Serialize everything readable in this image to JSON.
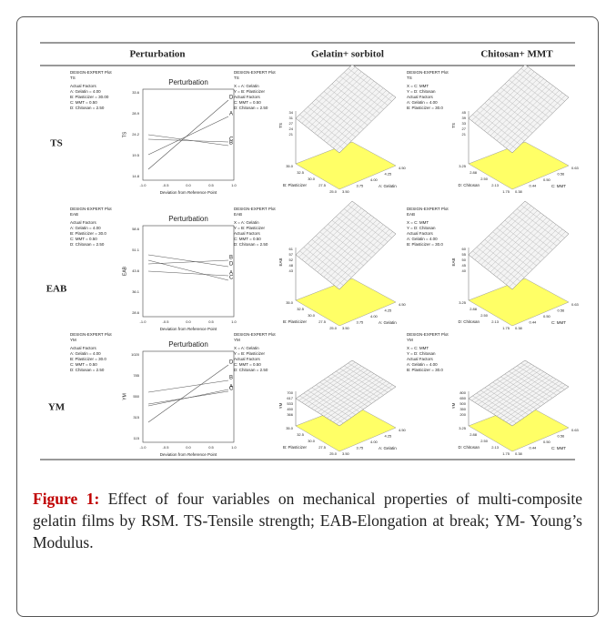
{
  "header": {
    "columns": [
      "Perturbation",
      "Gelatin+ sorbitol",
      "Chitosan+ MMT"
    ]
  },
  "rows": [
    {
      "label": "TS",
      "panels": [
        {
          "kind": "perturbation",
          "info": [
            "DESIGN-EXPERT Plot",
            "TS",
            "Actual Factors",
            "A: Gelatin = 4.00",
            "B: Plasticizer = 30.00",
            "C: MMT = 0.50",
            "D: Chitosan = 2.50"
          ],
          "title": "Perturbation",
          "ylabel": "TS",
          "yticks": [
            "33.6",
            "28.9",
            "24.2",
            "19.5",
            "14.8"
          ],
          "xticks": [
            "-1.0",
            "-0.5",
            "0.0",
            "0.5",
            "1.0"
          ],
          "xlabel": "Deviation from Reference Point",
          "lines": [
            "A",
            "B",
            "C",
            "D"
          ]
        },
        {
          "kind": "surface",
          "info": [
            "DESIGN-EXPERT Plot",
            "TS",
            "X = A: Gelatin",
            "Y = B: Plasticizer",
            "Actual Factors",
            "C: MMT = 0.50",
            "D: Chitosan = 2.50"
          ],
          "zlabel": "TS",
          "zticks": [
            "34",
            "31",
            "27",
            "24",
            "21"
          ],
          "yticks": [
            "35.0",
            "32.5",
            "30.0",
            "27.5",
            "25.0"
          ],
          "ylabel": "B: Plasticizer",
          "xticks": [
            "3.50",
            "3.75",
            "4.00",
            "4.25",
            "4.50"
          ],
          "xlabel": "A: Gelatin"
        },
        {
          "kind": "surface",
          "info": [
            "DESIGN-EXPERT Plot",
            "TS",
            "X = C: MMT",
            "Y = D: Chitosan",
            "Actual Factors",
            "A: Gelatin = 4.00",
            "B: Plasticizer = 30.0"
          ],
          "zlabel": "TS",
          "zticks": [
            "45",
            "39",
            "33",
            "27",
            "21"
          ],
          "yticks": [
            "3.25",
            "2.88",
            "2.50",
            "2.13",
            "1.75"
          ],
          "ylabel": "D: Chitosan",
          "xticks": [
            "0.38",
            "0.44",
            "0.50",
            "0.56",
            "0.63"
          ],
          "xlabel": "C: MMT"
        }
      ]
    },
    {
      "label": "EAB",
      "panels": [
        {
          "kind": "perturbation",
          "info": [
            "DESIGN-EXPERT Plot",
            "EAB",
            "Actual Factors",
            "A: Gelatin = 4.00",
            "B: Plasticizer = 30.0",
            "C: MMT = 0.50",
            "D: Chitosan = 2.50"
          ],
          "title": "Perturbation",
          "ylabel": "EAB",
          "yticks": [
            "58.6",
            "51.1",
            "43.6",
            "36.1",
            "28.6"
          ],
          "xticks": [
            "-1.0",
            "-0.5",
            "0.0",
            "0.5",
            "1.0"
          ],
          "xlabel": "Deviation from Reference Point",
          "lines": [
            "D",
            "B",
            "A",
            "C"
          ]
        },
        {
          "kind": "surface",
          "info": [
            "DESIGN-EXPERT Plot",
            "EAB",
            "X = A: Gelatin",
            "Y = B: Plasticizer",
            "Actual Factors",
            "C: MMT = 0.50",
            "D: Chitosan = 2.50"
          ],
          "zlabel": "EAB",
          "zticks": [
            "61",
            "57",
            "52",
            "48",
            "43"
          ],
          "yticks": [
            "35.0",
            "32.5",
            "30.0",
            "27.5",
            "25.0"
          ],
          "ylabel": "B: Plasticizer",
          "xticks": [
            "3.50",
            "3.75",
            "4.00",
            "4.25",
            "4.50"
          ],
          "xlabel": "A: Gelatin"
        },
        {
          "kind": "surface",
          "info": [
            "DESIGN-EXPERT Plot",
            "EAB",
            "X = C: MMT",
            "Y = D: Chitosan",
            "Actual Factors",
            "A: Gelatin = 4.00",
            "B: Plasticizer = 30.0"
          ],
          "zlabel": "EAB",
          "zticks": [
            "60",
            "55",
            "50",
            "45",
            "40"
          ],
          "yticks": [
            "3.25",
            "2.88",
            "2.50",
            "2.13",
            "1.75"
          ],
          "ylabel": "D: Chitosan",
          "xticks": [
            "0.38",
            "0.44",
            "0.50",
            "0.56",
            "0.63"
          ],
          "xlabel": "C: MMT"
        }
      ]
    },
    {
      "label": "YM",
      "panels": [
        {
          "kind": "perturbation",
          "info": [
            "DESIGN-EXPERT Plot",
            "YM",
            "Actual Factors",
            "A: Gelatin = 4.00",
            "B: Plasticizer = 30.0",
            "C: MMT = 0.50",
            "D: Chitosan = 2.50"
          ],
          "title": "Perturbation",
          "ylabel": "YM",
          "yticks": [
            "1020",
            "785",
            "550",
            "315",
            "115"
          ],
          "xticks": [
            "-1.0",
            "-0.5",
            "0.0",
            "0.5",
            "1.0"
          ],
          "xlabel": "Deviation from Reference Point",
          "lines": [
            "B",
            "A",
            "C",
            "D"
          ]
        },
        {
          "kind": "surface",
          "info": [
            "DESIGN-EXPERT Plot",
            "YM",
            "X = A: Gelatin",
            "Y = B: Plasticizer",
            "Actual Factors",
            "C: MMT = 0.50",
            "D: Chitosan = 2.50"
          ],
          "zlabel": "YM",
          "zticks": [
            "700",
            "617",
            "533",
            "450",
            "366"
          ],
          "yticks": [
            "35.0",
            "32.5",
            "30.0",
            "27.5",
            "25.0"
          ],
          "ylabel": "B: Plasticizer",
          "xticks": [
            "3.50",
            "3.75",
            "4.00",
            "4.25",
            "4.50"
          ],
          "xlabel": "A: Gelatin"
        },
        {
          "kind": "surface",
          "info": [
            "DESIGN-EXPERT Plot",
            "YM",
            "X = C: MMT",
            "Y = D: Chitosan",
            "Actual Factors",
            "A: Gelatin = 4.00",
            "B: Plasticizer = 30.0"
          ],
          "zlabel": "YM",
          "zticks": [
            "800",
            "650",
            "500",
            "350",
            "200"
          ],
          "yticks": [
            "3.25",
            "2.88",
            "2.50",
            "2.13",
            "1.75"
          ],
          "ylabel": "D: Chitosan",
          "xticks": [
            "0.38",
            "0.44",
            "0.50",
            "0.56",
            "0.63"
          ],
          "xlabel": "C: MMT"
        }
      ]
    }
  ],
  "caption": {
    "label": "Figure 1:",
    "text": "Effect of four variables on mechanical properties of multi-composite gelatin films by RSM. TS-Tensile strength; EAB-Elongation at break; YM- Young’s Modulus."
  }
}
